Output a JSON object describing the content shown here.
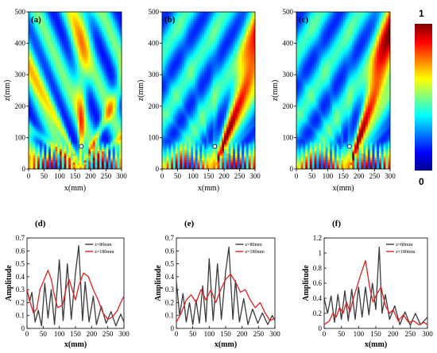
{
  "colors": {
    "series_z80": "#3a3a3a",
    "series_z180": "#e02020",
    "colormap": "jet"
  },
  "colorbar": {
    "max_label": "1",
    "min_label": "0",
    "range": [
      0,
      1
    ]
  },
  "chart_data": [
    {
      "type": "heatmap",
      "panel": "(a)",
      "xlabel": "x(mm)",
      "ylabel": "z(mm)",
      "xlim": [
        0,
        300
      ],
      "ylim": [
        0,
        500
      ],
      "xticks": [
        0,
        50,
        100,
        150,
        200,
        250,
        300
      ],
      "yticks": [
        0,
        100,
        200,
        300,
        400,
        500
      ],
      "source_x": 170,
      "beam_angle_deg": 0,
      "pattern": "symmetric spreading lobes"
    },
    {
      "type": "heatmap",
      "panel": "(b)",
      "xlabel": "x(mm)",
      "ylabel": "z(mm)",
      "xlim": [
        0,
        300
      ],
      "ylim": [
        0,
        500
      ],
      "xticks": [
        0,
        50,
        100,
        150,
        200,
        250,
        300
      ],
      "yticks": [
        0,
        100,
        200,
        300,
        400,
        500
      ],
      "source_x": 170,
      "beam_angle_deg": 20,
      "pattern": "single steered main beam"
    },
    {
      "type": "heatmap",
      "panel": "(c)",
      "xlabel": "x(mm)",
      "ylabel": "z(mm)",
      "xlim": [
        0,
        300
      ],
      "ylim": [
        0,
        500
      ],
      "xticks": [
        0,
        50,
        100,
        150,
        200,
        250,
        300
      ],
      "yticks": [
        0,
        100,
        200,
        300,
        400,
        500
      ],
      "source_x": 170,
      "beam_angle_deg": 18,
      "pattern": "single steered main beam"
    },
    {
      "type": "line",
      "panel": "(d)",
      "xlabel": "x(mm)",
      "ylabel": "Amplitude",
      "xlim": [
        0,
        300
      ],
      "ylim": [
        0,
        0.7
      ],
      "xticks": [
        0,
        50,
        100,
        150,
        200,
        250,
        300
      ],
      "yticks": [
        0,
        0.1,
        0.2,
        0.3,
        0.4,
        0.5,
        0.6,
        0.7
      ],
      "series": [
        {
          "name": "z=80mm",
          "points": [
            [
              0,
              0.3
            ],
            [
              8,
              0.21
            ],
            [
              15,
              0.28
            ],
            [
              25,
              0.05
            ],
            [
              35,
              0.14
            ],
            [
              45,
              0.02
            ],
            [
              55,
              0.35
            ],
            [
              65,
              0.08
            ],
            [
              75,
              0.3
            ],
            [
              85,
              0.03
            ],
            [
              100,
              0.53
            ],
            [
              112,
              0.06
            ],
            [
              125,
              0.5
            ],
            [
              137,
              0.07
            ],
            [
              150,
              0.43
            ],
            [
              160,
              0.64
            ],
            [
              172,
              0.06
            ],
            [
              180,
              0.36
            ],
            [
              192,
              0.05
            ],
            [
              205,
              0.25
            ],
            [
              215,
              0.03
            ],
            [
              230,
              0.17
            ],
            [
              245,
              0.04
            ],
            [
              260,
              0.13
            ],
            [
              275,
              0.02
            ],
            [
              290,
              0.11
            ],
            [
              300,
              0.05
            ]
          ]
        },
        {
          "name": "z=180mm",
          "points": [
            [
              0,
              0.3
            ],
            [
              10,
              0.2
            ],
            [
              20,
              0.12
            ],
            [
              30,
              0.15
            ],
            [
              40,
              0.3
            ],
            [
              55,
              0.39
            ],
            [
              65,
              0.45
            ],
            [
              75,
              0.38
            ],
            [
              85,
              0.25
            ],
            [
              95,
              0.16
            ],
            [
              110,
              0.18
            ],
            [
              120,
              0.3
            ],
            [
              130,
              0.38
            ],
            [
              140,
              0.3
            ],
            [
              150,
              0.22
            ],
            [
              160,
              0.33
            ],
            [
              175,
              0.43
            ],
            [
              190,
              0.4
            ],
            [
              205,
              0.3
            ],
            [
              220,
              0.22
            ],
            [
              235,
              0.12
            ],
            [
              250,
              0.07
            ],
            [
              265,
              0.09
            ],
            [
              280,
              0.14
            ],
            [
              290,
              0.2
            ],
            [
              300,
              0.25
            ]
          ]
        }
      ]
    },
    {
      "type": "line",
      "panel": "(e)",
      "xlabel": "x(mm)",
      "ylabel": "Amplitude",
      "xlim": [
        0,
        300
      ],
      "ylim": [
        0,
        0.7
      ],
      "xticks": [
        0,
        50,
        100,
        150,
        200,
        250,
        300
      ],
      "yticks": [
        0,
        0.1,
        0.2,
        0.3,
        0.4,
        0.5,
        0.6,
        0.7
      ],
      "series": [
        {
          "name": "z=80mm",
          "points": [
            [
              0,
              0.36
            ],
            [
              10,
              0.1
            ],
            [
              20,
              0.27
            ],
            [
              30,
              0.05
            ],
            [
              40,
              0.2
            ],
            [
              50,
              0.03
            ],
            [
              60,
              0.22
            ],
            [
              70,
              0.04
            ],
            [
              80,
              0.33
            ],
            [
              90,
              0.05
            ],
            [
              100,
              0.54
            ],
            [
              112,
              0.06
            ],
            [
              125,
              0.5
            ],
            [
              137,
              0.07
            ],
            [
              150,
              0.44
            ],
            [
              160,
              0.63
            ],
            [
              172,
              0.07
            ],
            [
              180,
              0.37
            ],
            [
              192,
              0.05
            ],
            [
              205,
              0.23
            ],
            [
              218,
              0.03
            ],
            [
              232,
              0.15
            ],
            [
              248,
              0.04
            ],
            [
              262,
              0.12
            ],
            [
              278,
              0.03
            ],
            [
              292,
              0.1
            ],
            [
              300,
              0.06
            ]
          ]
        },
        {
          "name": "z=180mm",
          "points": [
            [
              0,
              0.05
            ],
            [
              15,
              0.12
            ],
            [
              30,
              0.22
            ],
            [
              45,
              0.26
            ],
            [
              60,
              0.2
            ],
            [
              75,
              0.3
            ],
            [
              90,
              0.22
            ],
            [
              105,
              0.3
            ],
            [
              120,
              0.2
            ],
            [
              135,
              0.3
            ],
            [
              150,
              0.38
            ],
            [
              165,
              0.42
            ],
            [
              180,
              0.36
            ],
            [
              195,
              0.28
            ],
            [
              210,
              0.3
            ],
            [
              225,
              0.22
            ],
            [
              240,
              0.16
            ],
            [
              255,
              0.2
            ],
            [
              270,
              0.12
            ],
            [
              285,
              0.06
            ],
            [
              300,
              0.08
            ]
          ]
        }
      ]
    },
    {
      "type": "line",
      "panel": "(f)",
      "xlabel": "x(mm)",
      "ylabel": "Amplitude",
      "xlim": [
        0,
        300
      ],
      "ylim": [
        0,
        1.2
      ],
      "xticks": [
        0,
        50,
        100,
        150,
        200,
        250,
        300
      ],
      "yticks": [
        0,
        0.2,
        0.4,
        0.6,
        0.8,
        1.0,
        1.2
      ],
      "series": [
        {
          "name": "z=80mm",
          "points": [
            [
              0,
              0.4
            ],
            [
              10,
              0.2
            ],
            [
              20,
              0.43
            ],
            [
              30,
              0.08
            ],
            [
              40,
              0.45
            ],
            [
              50,
              0.12
            ],
            [
              60,
              0.5
            ],
            [
              70,
              0.1
            ],
            [
              80,
              0.52
            ],
            [
              90,
              0.12
            ],
            [
              100,
              0.55
            ],
            [
              110,
              0.15
            ],
            [
              120,
              0.55
            ],
            [
              130,
              0.18
            ],
            [
              140,
              0.6
            ],
            [
              150,
              0.25
            ],
            [
              160,
              1.08
            ],
            [
              168,
              0.2
            ],
            [
              178,
              0.45
            ],
            [
              190,
              0.12
            ],
            [
              205,
              0.3
            ],
            [
              220,
              0.05
            ],
            [
              235,
              0.22
            ],
            [
              250,
              0.04
            ],
            [
              265,
              0.2
            ],
            [
              280,
              0.05
            ],
            [
              300,
              0.15
            ]
          ]
        },
        {
          "name": "z=180mm",
          "points": [
            [
              0,
              0.05
            ],
            [
              15,
              0.1
            ],
            [
              25,
              0.2
            ],
            [
              35,
              0.15
            ],
            [
              45,
              0.28
            ],
            [
              55,
              0.2
            ],
            [
              65,
              0.35
            ],
            [
              75,
              0.22
            ],
            [
              85,
              0.4
            ],
            [
              95,
              0.55
            ],
            [
              105,
              0.7
            ],
            [
              120,
              0.9
            ],
            [
              132,
              0.55
            ],
            [
              142,
              0.35
            ],
            [
              152,
              0.45
            ],
            [
              165,
              0.55
            ],
            [
              178,
              0.3
            ],
            [
              190,
              0.2
            ],
            [
              200,
              0.25
            ],
            [
              215,
              0.1
            ],
            [
              230,
              0.18
            ],
            [
              245,
              0.08
            ],
            [
              260,
              0.1
            ],
            [
              275,
              0.05
            ],
            [
              290,
              0.08
            ],
            [
              300,
              0.05
            ]
          ]
        }
      ]
    }
  ]
}
